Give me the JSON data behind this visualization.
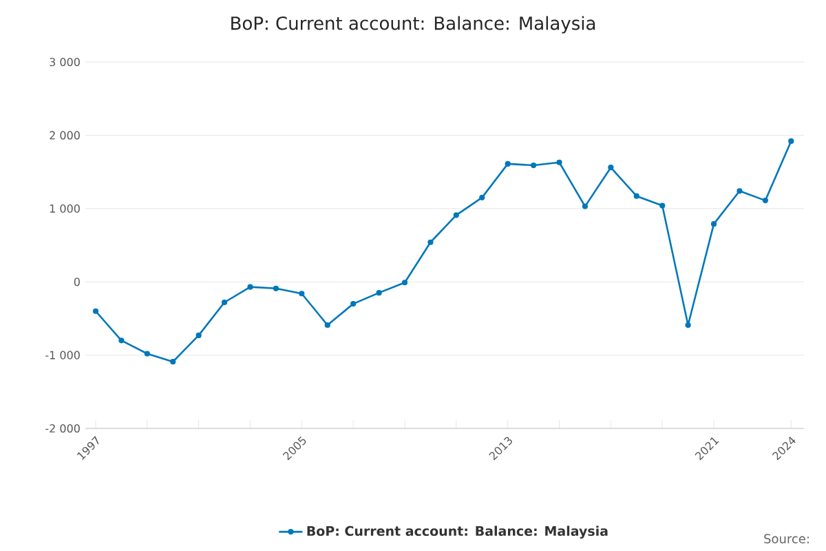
{
  "chart_data": {
    "type": "line",
    "title": "BoP: Current account: Balance: Malaysia",
    "x": [
      1997,
      1998,
      1999,
      2000,
      2001,
      2002,
      2003,
      2004,
      2005,
      2006,
      2007,
      2008,
      2009,
      2010,
      2011,
      2012,
      2013,
      2014,
      2015,
      2016,
      2017,
      2018,
      2019,
      2020,
      2021,
      2022,
      2023,
      2024
    ],
    "series": [
      {
        "name": "BoP: Current account: Balance: Malaysia",
        "color": "#0077bb",
        "values": [
          -400,
          -800,
          -980,
          -1090,
          -730,
          -280,
          -70,
          -90,
          -160,
          -590,
          -300,
          -150,
          -10,
          540,
          910,
          1150,
          1610,
          1590,
          1630,
          1030,
          1560,
          1170,
          1040,
          -590,
          790,
          1240,
          1110,
          1920
        ]
      }
    ],
    "xlim": [
      1996.6,
      2024.5
    ],
    "xticks": [
      1997,
      {
        "value": 1999,
        "label": null
      },
      {
        "value": 2001,
        "label": null
      },
      {
        "value": 2003,
        "label": null
      },
      2005,
      {
        "value": 2007,
        "label": null
      },
      {
        "value": 2009,
        "label": null
      },
      {
        "value": 2011,
        "label": null
      },
      2013,
      {
        "value": 2015,
        "label": null
      },
      {
        "value": 2017,
        "label": null
      },
      {
        "value": 2019,
        "label": null
      },
      2021,
      2024
    ],
    "ylim": [
      -2000,
      3000
    ],
    "yticks": [
      {
        "value": -2000,
        "label": "-2 000"
      },
      {
        "value": -1000,
        "label": "-1 000"
      },
      0,
      {
        "value": 1000,
        "label": "1 000"
      },
      {
        "value": 2000,
        "label": "2 000"
      },
      {
        "value": 3000,
        "label": "3 000"
      }
    ],
    "grid": "y",
    "legend": "bottom",
    "marker": "circle",
    "line_style": "solid",
    "annotations": [
      "Source:"
    ]
  }
}
